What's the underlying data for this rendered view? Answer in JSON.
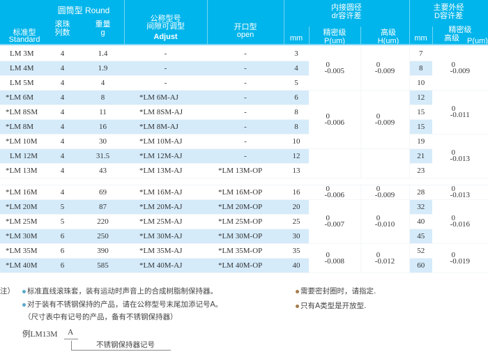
{
  "header": {
    "round": "圆筒型 Round",
    "standard_cn": "标准型",
    "standard_en": "Standard",
    "rows_cn_1": "滚珠",
    "rows_cn_2": "列数",
    "weight_cn": "重量",
    "weight_unit": "g",
    "adjust_cn_1": "公称型号",
    "adjust_cn_2": "间隙可调型",
    "adjust_en": "Adjust",
    "open_cn": "开口型",
    "open_en": "open",
    "dr_cn_1": "内接圆径",
    "dr_cn_2": "dr容许差",
    "dr_mm": "mm",
    "dr_p_cn": "精密级",
    "dr_p_unit": "P(um)",
    "dr_h_cn": "高级",
    "dr_h_unit": "H(um)",
    "D_cn_1": "主要外经",
    "D_cn_2": "D容许差",
    "D_mm": "mm",
    "D_p_cn_1": "精密级",
    "D_p_cn_2": "高级",
    "D_p_unit": "P(um)"
  },
  "rows": [
    {
      "standard": "LM 3M",
      "rows": "4",
      "weight": "1.4",
      "adjust": "-",
      "open": "-",
      "dr": "3",
      "D": "7",
      "hl": false,
      "D_hl": false
    },
    {
      "standard": "LM 4M",
      "rows": "4",
      "weight": "1.9",
      "adjust": "-",
      "open": "-",
      "dr": "4",
      "D": "8",
      "hl": true,
      "D_hl": true
    },
    {
      "standard": "LM 5M",
      "rows": "4",
      "weight": "4",
      "adjust": "-",
      "open": "-",
      "dr": "5",
      "D": "10",
      "hl": false,
      "D_hl": false
    },
    {
      "standard": "*LM 6M",
      "rows": "4",
      "weight": "8",
      "adjust": "*LM 6M-AJ",
      "open": "-",
      "dr": "6",
      "D": "12",
      "hl": true,
      "D_hl": true
    },
    {
      "standard": "*LM 8SM",
      "rows": "4",
      "weight": "11",
      "adjust": "*LM 8SM-AJ",
      "open": "-",
      "dr": "8",
      "D": "15",
      "hl": false,
      "D_hl": false
    },
    {
      "standard": "*LM 8M",
      "rows": "4",
      "weight": "16",
      "adjust": "*LM 8M-AJ",
      "open": "-",
      "dr": "8",
      "D": "15",
      "hl": true,
      "D_hl": true
    },
    {
      "standard": "*LM 10M",
      "rows": "4",
      "weight": "30",
      "adjust": "*LM 10M-AJ",
      "open": "-",
      "dr": "10",
      "D": "19",
      "hl": false,
      "D_hl": false
    },
    {
      "standard": "LM 12M",
      "rows": "4",
      "weight": "31.5",
      "adjust": "*LM 12M-AJ",
      "open": "-",
      "dr": "12",
      "D": "21",
      "hl": true,
      "D_hl": true
    },
    {
      "standard": "*LM 13M",
      "rows": "4",
      "weight": "43",
      "adjust": "*LM 13M-AJ",
      "open": "*LM 13M-OP",
      "dr": "13",
      "D": "23",
      "hl": false,
      "D_hl": false
    },
    {
      "standard": "*LM 16M",
      "rows": "4",
      "weight": "69",
      "adjust": "*LM 16M-AJ",
      "open": "*LM 16M-OP",
      "dr": "16",
      "D": "28",
      "hl": false,
      "D_hl": false
    },
    {
      "standard": "*LM 20M",
      "rows": "5",
      "weight": "87",
      "adjust": "*LM 20M-AJ",
      "open": "*LM 20M-OP",
      "dr": "20",
      "D": "32",
      "hl": true,
      "D_hl": true
    },
    {
      "standard": "*LM 25M",
      "rows": "5",
      "weight": "220",
      "adjust": "*LM 25M-AJ",
      "open": "*LM 25M-OP",
      "dr": "25",
      "D": "40",
      "hl": false,
      "D_hl": false
    },
    {
      "standard": "*LM 30M",
      "rows": "6",
      "weight": "250",
      "adjust": "*LM 30M-AJ",
      "open": "*LM 30M-OP",
      "dr": "30",
      "D": "45",
      "hl": true,
      "D_hl": true
    },
    {
      "standard": "*LM 35M",
      "rows": "6",
      "weight": "390",
      "adjust": "*LM 35M-AJ",
      "open": "*LM 35M-OP",
      "dr": "35",
      "D": "52",
      "hl": false,
      "D_hl": false
    },
    {
      "standard": "*LM 40M",
      "rows": "6",
      "weight": "585",
      "adjust": "*LM 40M-AJ",
      "open": "*LM 40M-OP",
      "dr": "40",
      "D": "60",
      "hl": true,
      "D_hl": true
    }
  ],
  "dr_p_groups": [
    {
      "span": 3,
      "upper": "0",
      "lower": "-0.005"
    },
    {
      "span": 4,
      "upper": "0",
      "lower": "-0.006"
    },
    {
      "span": 2,
      "upper": "",
      "lower": ""
    },
    {
      "span": 1,
      "upper": "0",
      "lower": "-0.006"
    },
    {
      "span": 3,
      "upper": "0",
      "lower": "-0.007"
    },
    {
      "span": 2,
      "upper": "0",
      "lower": "-0.008"
    }
  ],
  "dr_h_groups": [
    {
      "span": 3,
      "upper": "0",
      "lower": "-0.009"
    },
    {
      "span": 4,
      "upper": "0",
      "lower": "-0.009"
    },
    {
      "span": 2,
      "upper": "",
      "lower": ""
    },
    {
      "span": 1,
      "upper": "0",
      "lower": "-0.009"
    },
    {
      "span": 3,
      "upper": "0",
      "lower": "-0.010"
    },
    {
      "span": 2,
      "upper": "0",
      "lower": "-0.012"
    }
  ],
  "D_p_groups": [
    {
      "span": 3,
      "upper": "0",
      "lower": "-0.009"
    },
    {
      "span": 3,
      "upper": "0",
      "lower": "-0.011"
    },
    {
      "span": 3,
      "upper": "0",
      "lower": "-0.013"
    },
    {
      "span": 1,
      "upper": "0",
      "lower": "-0.013"
    },
    {
      "span": 3,
      "upper": "0",
      "lower": "-0.016"
    },
    {
      "span": 2,
      "upper": "0",
      "lower": "-0.019"
    }
  ],
  "notes": {
    "label": "注）",
    "note1": "标准直线滚珠套，装有运动时声音上的合成树脂制保持器。",
    "note2": "对于装有不锈钢保持的产品，请在公称型号末尾加添记号A。",
    "note3": "（尺寸表中有记号的产品，备有不锈钢保持器）",
    "note4": "需要密封圈时，请指定.",
    "note5": "只有A类型是开放型.",
    "example_prefix": "例LM13M",
    "example_suffix": "A",
    "example_label": "不锈钢保持器记号",
    "blue_bullet": "#5aa9c9",
    "brown_bullet": "#a57a4a"
  },
  "colors": {
    "header_bg": "#00b5eb",
    "row_highlight": "#d5ebfa"
  }
}
